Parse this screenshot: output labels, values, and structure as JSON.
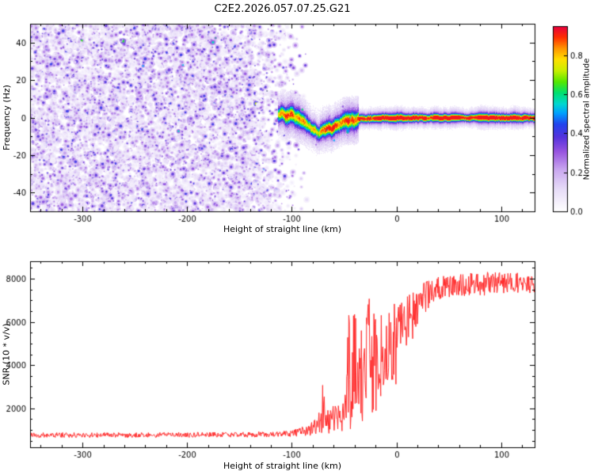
{
  "title": "C2E2.2026.057.07.25.G21",
  "chart_data": [
    {
      "type": "heatmap",
      "title": "C2E2.2026.057.07.25.G21",
      "xlabel": "Height of straight line (km)",
      "ylabel": "Frequency (Hz)",
      "xlim": [
        -350,
        132
      ],
      "ylim": [
        -50,
        50
      ],
      "xticks": [
        -300,
        -200,
        -100,
        0,
        100
      ],
      "yticks": [
        -40,
        -20,
        0,
        20,
        40
      ],
      "x_minor_step": 20,
      "y_minor_step": 10,
      "grid": false,
      "colorbar": {
        "label": "Normalized spectral amplitude",
        "ticks": [
          "0.0",
          "0.2",
          "0.4",
          "0.6",
          "0.8"
        ],
        "tick_values": [
          0,
          0.2,
          0.4,
          0.6,
          0.8
        ],
        "vmax": 0.95
      },
      "colormap": [
        [
          0.0,
          "#ffffff"
        ],
        [
          0.12,
          "#e7dcf8"
        ],
        [
          0.22,
          "#cbaaf0"
        ],
        [
          0.32,
          "#9955e0"
        ],
        [
          0.4,
          "#5533dd"
        ],
        [
          0.47,
          "#2244ee"
        ],
        [
          0.53,
          "#00a0ff"
        ],
        [
          0.58,
          "#00d8d0"
        ],
        [
          0.64,
          "#00e070"
        ],
        [
          0.7,
          "#55e800"
        ],
        [
          0.76,
          "#c8f000"
        ],
        [
          0.82,
          "#ffe000"
        ],
        [
          0.88,
          "#ff9800"
        ],
        [
          0.94,
          "#ff3000"
        ],
        [
          1.0,
          "#e8003c"
        ]
      ],
      "noise": {
        "count": 9000,
        "x_full_until": -145,
        "x_end": -82,
        "amp_range": [
          0.06,
          0.45
        ]
      },
      "signal": {
        "x": [
          -113,
          -106,
          -100,
          -95,
          -90,
          -85,
          -80,
          -75,
          -70,
          -65,
          -60,
          -55,
          -50,
          -45,
          -40,
          -35,
          -25,
          0,
          132
        ],
        "freq": [
          2.5,
          1.5,
          1,
          0,
          -1.5,
          -4,
          -6.5,
          -8,
          -7,
          -5.5,
          -4.5,
          -3.2,
          -2.2,
          -1.5,
          -1,
          -0.6,
          -0.3,
          0,
          0
        ],
        "tight_from_x": -36
      }
    },
    {
      "type": "line",
      "xlabel": "Height of straight line (km)",
      "ylabel": "SNR (10 * v/v)",
      "xlim": [
        -350,
        132
      ],
      "ylim": [
        200,
        8800
      ],
      "xticks": [
        -300,
        -200,
        -100,
        0,
        100
      ],
      "yticks": [
        2000,
        4000,
        6000,
        8000
      ],
      "x_minor_step": 20,
      "y_minor_step": 500,
      "grid": false,
      "series": [
        {
          "name": "SNR",
          "color": "#ff2a2a",
          "sample_step_km": 0.5,
          "envelope_x": [
            -350,
            -250,
            -150,
            -110,
            -95,
            -85,
            -76,
            -71,
            -67,
            -62,
            -55,
            -49,
            -46,
            -43,
            -40,
            -36,
            -33,
            -30,
            -26,
            -22,
            -18,
            -14,
            -10,
            -6,
            -2,
            2,
            6,
            10,
            15,
            20,
            26,
            33,
            40,
            55,
            75,
            100,
            120,
            132
          ],
          "envelope_lo": [
            640,
            650,
            660,
            680,
            700,
            720,
            750,
            820,
            800,
            850,
            900,
            950,
            1000,
            1050,
            1050,
            1100,
            1200,
            1250,
            1400,
            1700,
            2000,
            2300,
            2600,
            2400,
            2800,
            3300,
            3800,
            4300,
            5000,
            5600,
            6300,
            6800,
            7000,
            7100,
            7200,
            7200,
            7300,
            7300
          ],
          "envelope_hi": [
            880,
            890,
            900,
            950,
            1050,
            1250,
            1600,
            3250,
            1900,
            2100,
            2400,
            3000,
            7600,
            3600,
            7800,
            4800,
            7800,
            5500,
            7400,
            6700,
            6900,
            7000,
            7100,
            6600,
            6900,
            7000,
            7100,
            7200,
            7400,
            7600,
            7800,
            8000,
            8100,
            8200,
            8300,
            8300,
            8250,
            8200
          ]
        }
      ]
    }
  ]
}
